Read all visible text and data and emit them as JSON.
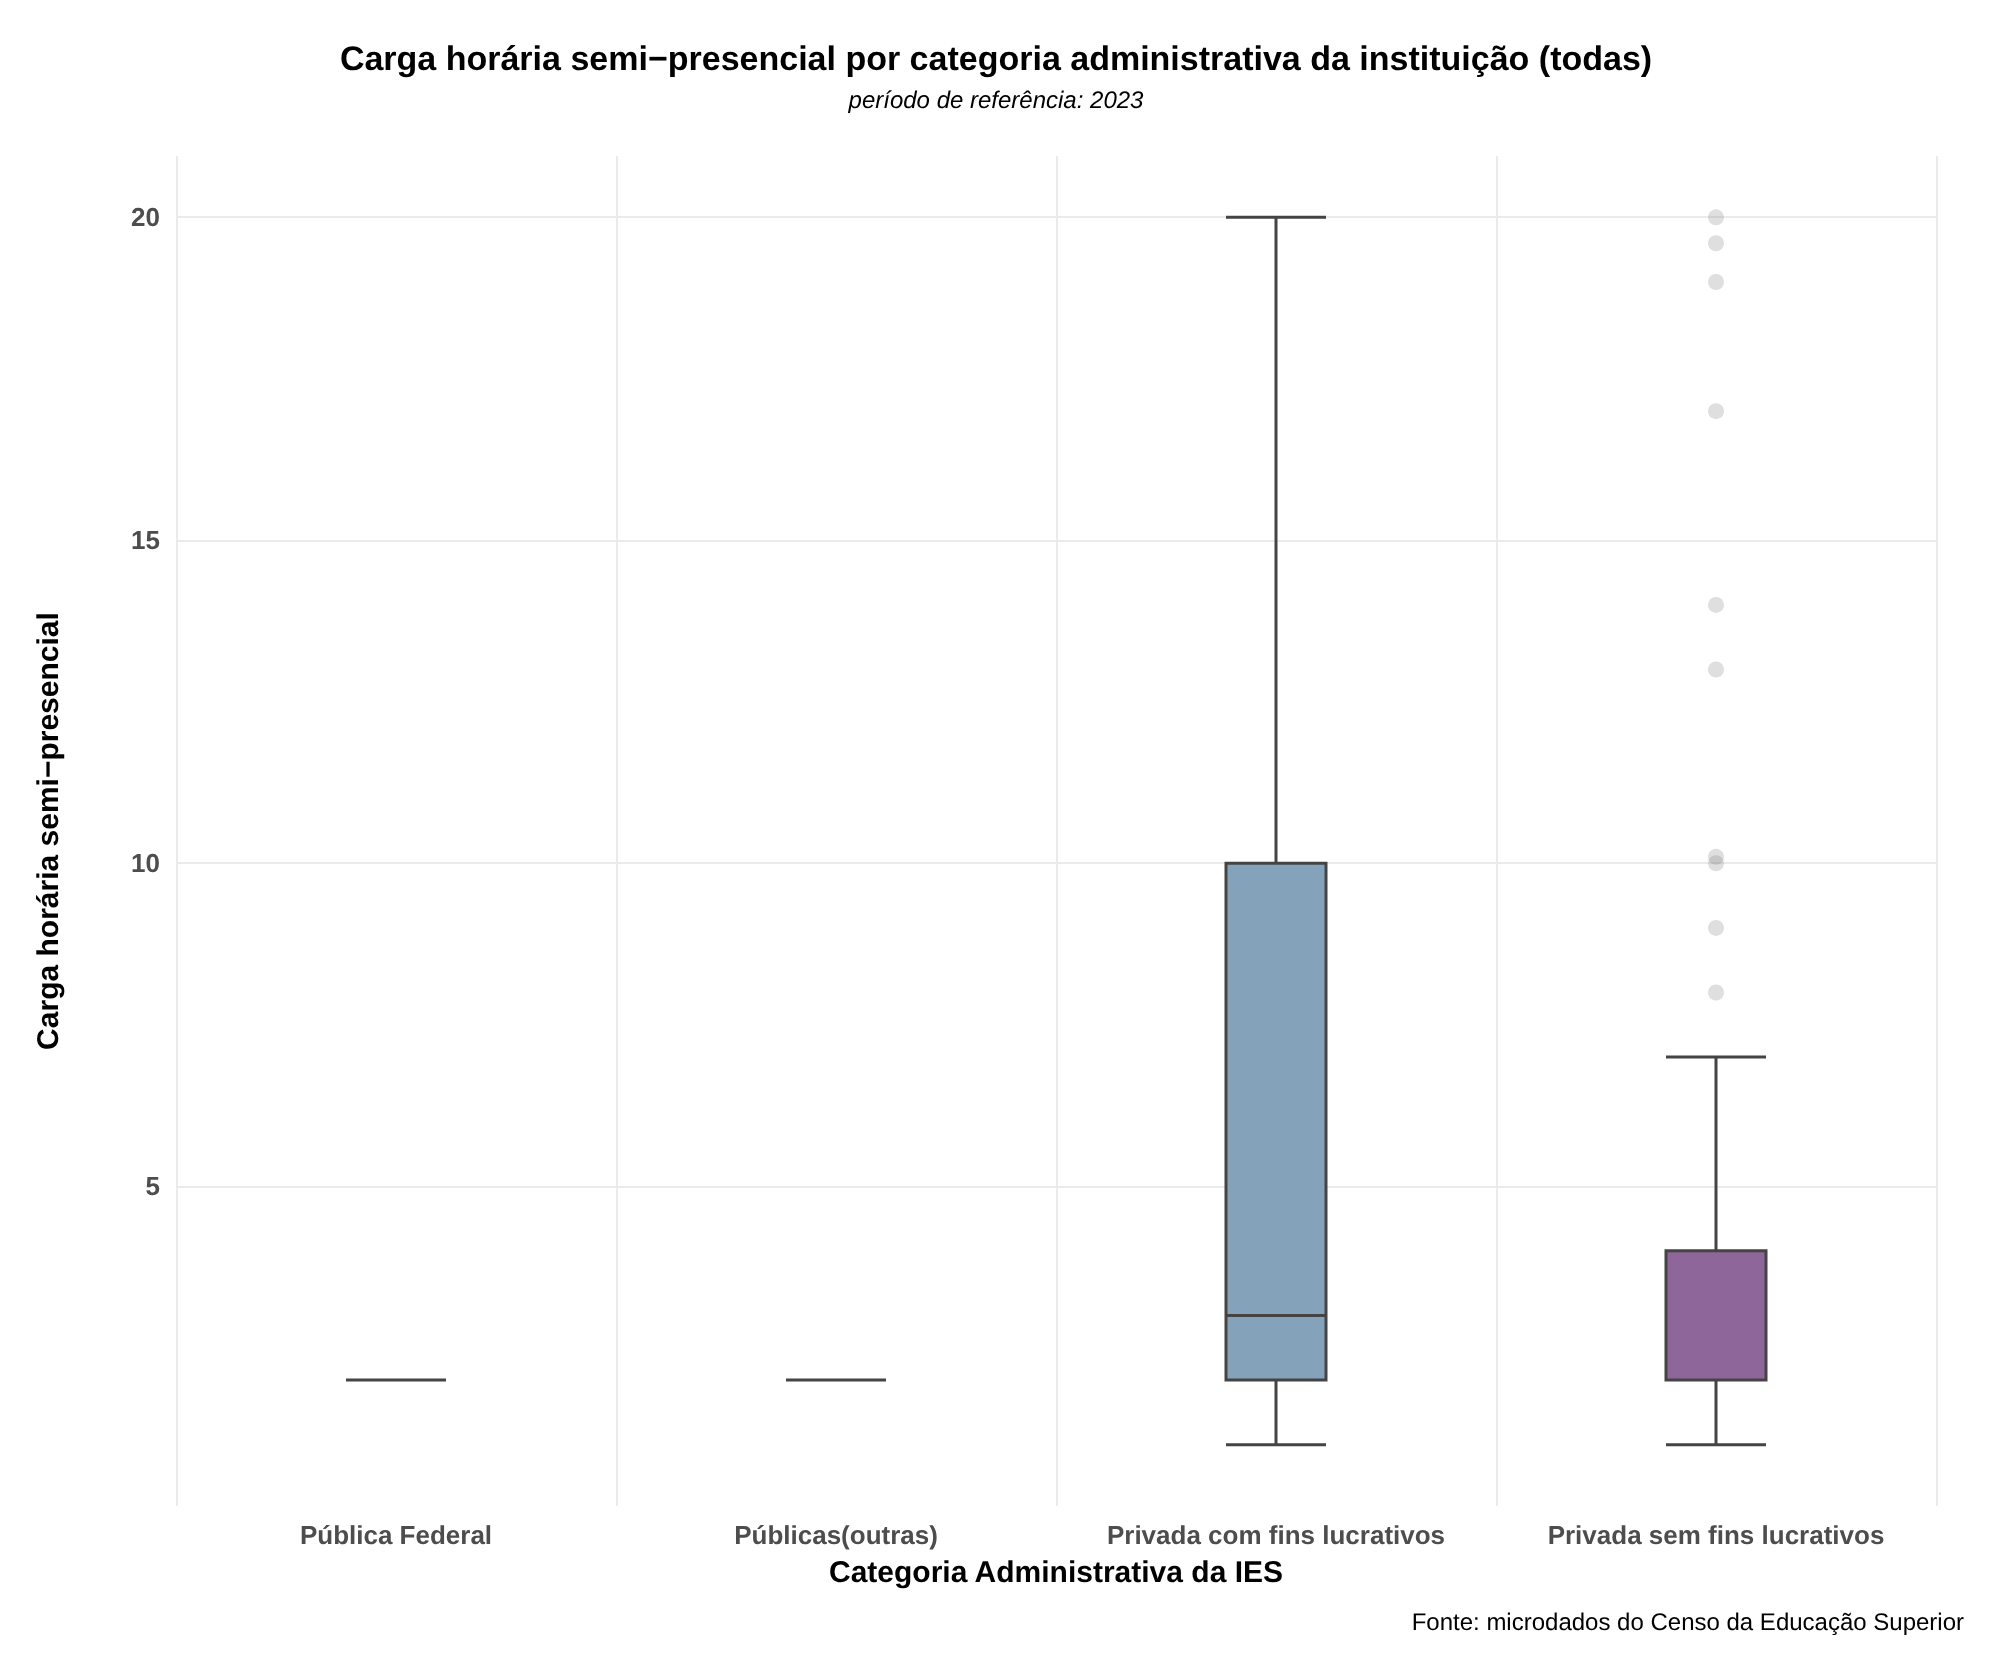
{
  "chart_data": {
    "type": "box",
    "title": "Carga horária semi−presencial por categoria administrativa da instituição (todas)",
    "subtitle": "período de referência: 2023",
    "xlabel": "Categoria Administrativa da IES",
    "ylabel": "Carga horária semi−presencial",
    "annotations": [
      "Fonte: microdados do Censo da Educação Superior"
    ],
    "categories": [
      "Pública Federal",
      "Públicas(outras)",
      "Privada com fins lucrativos",
      "Privada sem fins lucrativos"
    ],
    "boxes": [
      {
        "low": 2,
        "q1": 2,
        "median": 2,
        "q3": 2,
        "high": 2
      },
      {
        "low": 2,
        "q1": 2,
        "median": 2,
        "q3": 2,
        "high": 2
      },
      {
        "low": 1,
        "q1": 2,
        "median": 3,
        "q3": 10,
        "high": 20
      },
      {
        "low": 1,
        "q1": 2,
        "median": 2,
        "q3": 4,
        "high": 7,
        "outliers": [
          8,
          9,
          10,
          10.1,
          13,
          14,
          17,
          19,
          19.6,
          20
        ]
      }
    ],
    "colors": [
      "#444444",
      "#444444",
      "#84a3bb",
      "#8e6699"
    ],
    "ylim": [
      0.05,
      20.95
    ],
    "yticks": [
      5,
      10,
      15,
      20
    ],
    "grid": true
  }
}
